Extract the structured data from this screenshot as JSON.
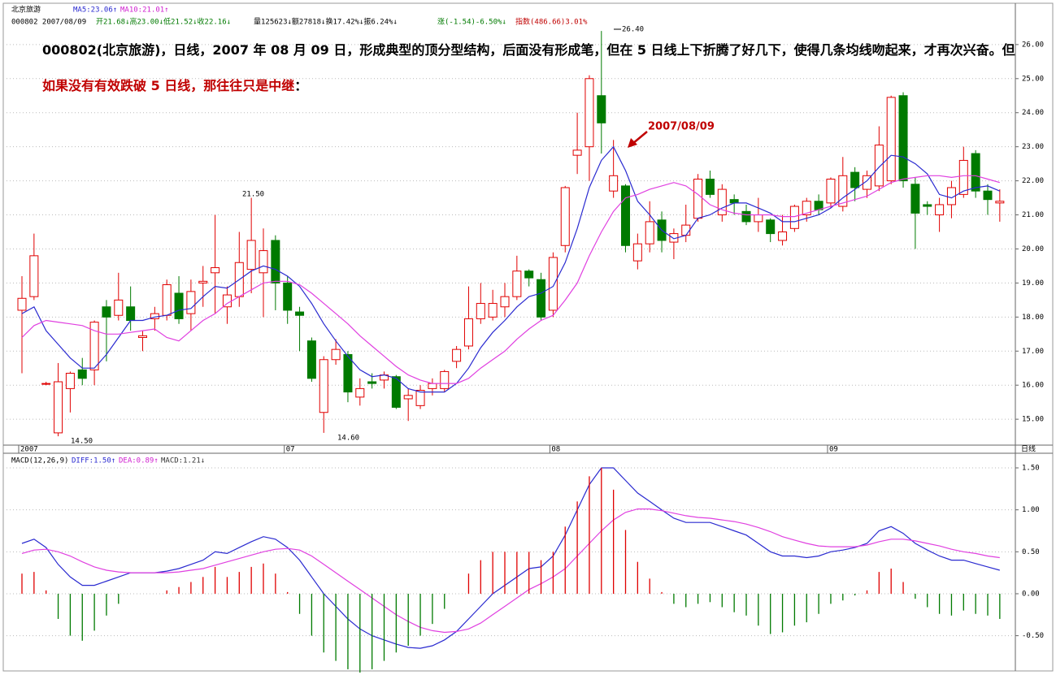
{
  "header": {
    "row1": [
      "北京旅游",
      "MA5:23.06↑",
      "MA10:21.01↑"
    ],
    "row2": [
      "000802 2007/08/09",
      "开21.68↓高23.00↓低21.52↓收22.16↓",
      "量125623↓额27818↓换17.42%↓振6.24%↓",
      "涨(-1.54)-6.50%↓",
      "指数(486.66)3.01%"
    ]
  },
  "note": [
    "000802(北京旅游)，日线，2007 年 08 月 09 日，形成典型的顶分型结构，后面没有形成笔，但在 5 日线上下折腾了好几下，使得几条均线吻起来，才再次兴奋。但",
    "如果没有有效跌破 5 日线，那往往只是中继",
    "："
  ],
  "chart_data": [
    {
      "type": "candlestick",
      "period_label": "日线",
      "categories": [
        "2007",
        null,
        null,
        null,
        null,
        null,
        null,
        null,
        null,
        null,
        null,
        null,
        null,
        null,
        null,
        null,
        null,
        null,
        null,
        null,
        null,
        null,
        "07",
        null,
        null,
        null,
        null,
        null,
        null,
        null,
        null,
        null,
        null,
        null,
        null,
        null,
        null,
        null,
        null,
        null,
        null,
        null,
        null,
        null,
        "08",
        null,
        null,
        null,
        null,
        null,
        null,
        null,
        null,
        null,
        null,
        null,
        null,
        null,
        null,
        null,
        null,
        null,
        null,
        null,
        null,
        null,
        null,
        "09",
        null,
        null,
        null,
        null,
        null,
        null,
        null,
        null,
        null,
        null,
        null,
        null,
        null,
        null
      ],
      "open": [
        18.2,
        18.6,
        16.05,
        14.6,
        15.9,
        16.45,
        16.45,
        18.3,
        18.05,
        18.3,
        17.4,
        17.95,
        18.05,
        18.7,
        18.1,
        19.0,
        19.3,
        18.3,
        18.6,
        19.4,
        19.3,
        20.25,
        19.0,
        18.15,
        17.3,
        15.2,
        16.75,
        16.9,
        15.65,
        16.1,
        16.15,
        16.25,
        15.6,
        15.4,
        15.9,
        15.9,
        16.7,
        17.15,
        17.95,
        18.0,
        18.3,
        18.6,
        19.35,
        19.1,
        18.2,
        20.1,
        22.75,
        23.0,
        24.5,
        21.7,
        21.85,
        19.65,
        20.15,
        20.85,
        20.2,
        20.4,
        20.9,
        22.05,
        21.0,
        21.45,
        21.1,
        20.8,
        20.85,
        20.25,
        20.6,
        21.0,
        21.4,
        21.35,
        21.25,
        22.25,
        21.75,
        21.85,
        22.0,
        24.5,
        21.9,
        21.3,
        21.0,
        21.3,
        21.6,
        22.8,
        21.7,
        21.35
      ],
      "high": [
        19.2,
        20.45,
        16.1,
        16.65,
        16.4,
        16.8,
        17.9,
        18.5,
        19.3,
        18.9,
        17.6,
        18.3,
        19.1,
        19.2,
        19.1,
        19.5,
        21.0,
        18.9,
        20.5,
        21.5,
        20.6,
        20.4,
        19.2,
        18.3,
        17.4,
        16.85,
        17.35,
        17.0,
        16.2,
        16.35,
        16.4,
        16.3,
        15.9,
        16.0,
        16.2,
        16.45,
        17.15,
        18.9,
        19.0,
        18.8,
        19.0,
        19.8,
        19.4,
        19.3,
        19.9,
        21.85,
        24.0,
        25.1,
        26.4,
        23.2,
        21.9,
        20.45,
        21.4,
        21.1,
        20.6,
        21.3,
        22.2,
        22.3,
        21.9,
        21.6,
        21.3,
        21.5,
        20.9,
        21.0,
        21.3,
        21.5,
        21.6,
        22.1,
        22.7,
        22.4,
        22.3,
        23.6,
        24.5,
        24.6,
        22.1,
        21.4,
        21.5,
        22.0,
        23.0,
        22.9,
        21.9,
        21.75
      ],
      "low": [
        16.35,
        18.5,
        16.0,
        14.5,
        15.2,
        16.0,
        16.0,
        16.7,
        17.9,
        17.6,
        17.0,
        17.6,
        17.9,
        17.8,
        17.6,
        18.3,
        18.1,
        17.8,
        18.3,
        18.7,
        18.0,
        18.2,
        17.8,
        17.0,
        16.1,
        14.6,
        16.6,
        15.5,
        15.4,
        15.9,
        15.9,
        15.3,
        14.95,
        15.3,
        15.7,
        15.8,
        16.5,
        17.05,
        17.8,
        17.9,
        18.0,
        18.5,
        18.9,
        17.9,
        18.0,
        19.9,
        22.2,
        22.0,
        22.8,
        21.5,
        19.9,
        19.4,
        19.9,
        19.9,
        19.7,
        20.2,
        20.8,
        21.5,
        20.8,
        21.0,
        20.7,
        20.5,
        20.2,
        20.1,
        20.5,
        20.8,
        21.0,
        21.2,
        21.1,
        21.4,
        21.5,
        21.7,
        21.9,
        21.8,
        20.0,
        21.0,
        20.5,
        20.9,
        21.5,
        21.5,
        21.0,
        20.8
      ],
      "close": [
        18.55,
        19.8,
        16.05,
        16.1,
        16.35,
        16.2,
        17.85,
        18.0,
        18.5,
        17.9,
        17.45,
        18.1,
        18.95,
        17.95,
        18.75,
        19.05,
        19.45,
        18.65,
        19.6,
        20.25,
        19.95,
        19.0,
        18.2,
        18.05,
        16.2,
        16.75,
        17.05,
        15.8,
        15.9,
        16.05,
        16.3,
        15.35,
        15.7,
        15.85,
        16.05,
        16.4,
        17.05,
        17.95,
        18.4,
        18.4,
        18.6,
        19.35,
        19.15,
        18.0,
        19.75,
        21.8,
        22.9,
        25.0,
        23.7,
        22.15,
        20.1,
        20.15,
        20.8,
        20.25,
        20.45,
        20.7,
        22.05,
        21.6,
        21.75,
        21.35,
        20.8,
        21.0,
        20.45,
        20.5,
        21.25,
        21.4,
        21.15,
        22.05,
        22.15,
        21.8,
        22.15,
        23.05,
        24.45,
        22.0,
        21.05,
        21.25,
        21.3,
        21.8,
        22.6,
        21.7,
        21.45,
        21.4
      ],
      "up_color": "#e00000",
      "down_color": "#007a00",
      "lines": [
        {
          "name": "MA5:23.06↑",
          "color": "#2a2ad0",
          "values": [
            18.1,
            18.3,
            17.6,
            17.2,
            16.8,
            16.5,
            16.5,
            16.9,
            17.4,
            17.9,
            17.9,
            18.0,
            18.05,
            18.2,
            18.25,
            18.6,
            18.9,
            18.85,
            19.1,
            19.35,
            19.5,
            19.4,
            19.2,
            18.9,
            18.4,
            17.8,
            17.3,
            16.85,
            16.45,
            16.25,
            16.3,
            16.2,
            15.9,
            15.8,
            15.8,
            15.8,
            16.05,
            16.5,
            17.1,
            17.55,
            17.9,
            18.3,
            18.6,
            18.7,
            18.9,
            19.6,
            20.6,
            21.8,
            22.6,
            23.0,
            22.3,
            21.4,
            21.0,
            20.55,
            20.3,
            20.4,
            20.9,
            21.0,
            21.2,
            21.35,
            21.35,
            21.2,
            21.05,
            20.8,
            20.8,
            20.9,
            21.0,
            21.2,
            21.5,
            21.75,
            22.0,
            22.4,
            22.75,
            22.7,
            22.5,
            22.2,
            21.6,
            21.5,
            21.7,
            21.8,
            21.85,
            21.7
          ]
        },
        {
          "name": "MA10:21.01↑",
          "color": "#e040e0",
          "values": [
            17.4,
            17.75,
            17.9,
            17.85,
            17.8,
            17.75,
            17.6,
            17.5,
            17.5,
            17.55,
            17.6,
            17.65,
            17.4,
            17.3,
            17.6,
            17.9,
            18.1,
            18.4,
            18.6,
            18.8,
            19.0,
            19.05,
            19.05,
            18.95,
            18.7,
            18.4,
            18.1,
            17.8,
            17.45,
            17.15,
            16.85,
            16.55,
            16.3,
            16.15,
            16.05,
            16.05,
            16.05,
            16.2,
            16.5,
            16.75,
            17.0,
            17.35,
            17.65,
            17.9,
            18.05,
            18.5,
            19.0,
            19.8,
            20.5,
            21.1,
            21.5,
            21.6,
            21.75,
            21.85,
            21.95,
            21.85,
            21.6,
            21.3,
            21.15,
            21.05,
            21.0,
            21.0,
            21.0,
            20.95,
            20.95,
            21.05,
            21.15,
            21.25,
            21.35,
            21.45,
            21.55,
            21.75,
            21.95,
            22.05,
            22.1,
            22.15,
            22.15,
            22.1,
            22.15,
            22.15,
            22.05,
            21.95
          ]
        }
      ],
      "annotations": [
        "26.40",
        "21.50",
        "14.50",
        "14.60",
        "2007/08/09"
      ],
      "ylim": [
        14.24,
        27.07
      ],
      "yticks": [
        {
          "value": 15,
          "label": "15.00"
        },
        {
          "value": 16,
          "label": "16.00"
        },
        {
          "value": 17,
          "label": "17.00"
        },
        {
          "value": 18,
          "label": "18.00"
        },
        {
          "value": 19,
          "label": "19.00"
        },
        {
          "value": 20,
          "label": "20.00"
        },
        {
          "value": 21,
          "label": "21.00"
        },
        {
          "value": 22,
          "label": "22.00"
        },
        {
          "value": 23,
          "label": "23.00"
        },
        {
          "value": 24,
          "label": "24.00"
        },
        {
          "value": 25,
          "label": "25.00"
        },
        {
          "value": 26,
          "label": "26.00"
        }
      ],
      "grid": true
    },
    {
      "type": "macd",
      "title": "MACD(12,26,9)",
      "series": [
        {
          "name": "DIFF:1.50↑",
          "color": "#2a2ad0",
          "values": [
            0.6,
            0.65,
            0.55,
            0.35,
            0.2,
            0.1,
            0.1,
            0.15,
            0.2,
            0.25,
            0.25,
            0.25,
            0.27,
            0.3,
            0.35,
            0.4,
            0.5,
            0.48,
            0.55,
            0.62,
            0.68,
            0.65,
            0.55,
            0.4,
            0.2,
            0.0,
            -0.15,
            -0.3,
            -0.42,
            -0.5,
            -0.55,
            -0.6,
            -0.64,
            -0.65,
            -0.62,
            -0.55,
            -0.45,
            -0.3,
            -0.15,
            0.0,
            0.1,
            0.2,
            0.3,
            0.32,
            0.45,
            0.7,
            1.0,
            1.3,
            1.5,
            1.5,
            1.35,
            1.2,
            1.1,
            1.0,
            0.9,
            0.85,
            0.85,
            0.85,
            0.8,
            0.75,
            0.7,
            0.6,
            0.5,
            0.45,
            0.45,
            0.43,
            0.45,
            0.5,
            0.52,
            0.55,
            0.6,
            0.75,
            0.8,
            0.72,
            0.6,
            0.52,
            0.45,
            0.4,
            0.4,
            0.36,
            0.32,
            0.28
          ]
        },
        {
          "name": "DEA:0.89↑",
          "color": "#e040e0",
          "values": [
            0.48,
            0.52,
            0.53,
            0.5,
            0.45,
            0.38,
            0.32,
            0.28,
            0.26,
            0.25,
            0.25,
            0.25,
            0.25,
            0.26,
            0.28,
            0.3,
            0.34,
            0.38,
            0.42,
            0.46,
            0.5,
            0.53,
            0.54,
            0.52,
            0.45,
            0.35,
            0.25,
            0.15,
            0.05,
            -0.05,
            -0.15,
            -0.25,
            -0.33,
            -0.4,
            -0.44,
            -0.46,
            -0.45,
            -0.42,
            -0.35,
            -0.25,
            -0.15,
            -0.05,
            0.05,
            0.12,
            0.2,
            0.3,
            0.45,
            0.6,
            0.75,
            0.88,
            0.97,
            1.01,
            1.01,
            0.99,
            0.96,
            0.93,
            0.91,
            0.9,
            0.88,
            0.86,
            0.83,
            0.79,
            0.74,
            0.68,
            0.64,
            0.6,
            0.57,
            0.56,
            0.56,
            0.56,
            0.58,
            0.62,
            0.65,
            0.65,
            0.63,
            0.6,
            0.57,
            0.53,
            0.5,
            0.48,
            0.45,
            0.43
          ]
        },
        {
          "name": "MACD:1.21↓",
          "color": "#333333",
          "bars": true,
          "values": [
            0.24,
            0.26,
            0.04,
            -0.3,
            -0.5,
            -0.56,
            -0.44,
            -0.26,
            -0.12,
            0,
            0,
            0,
            0.04,
            0.08,
            0.14,
            0.2,
            0.32,
            0.2,
            0.26,
            0.32,
            0.36,
            0.24,
            0.02,
            -0.24,
            -0.5,
            -0.7,
            -0.8,
            -0.9,
            -0.94,
            -0.9,
            -0.8,
            -0.7,
            -0.62,
            -0.5,
            -0.36,
            -0.18,
            0,
            0.24,
            0.4,
            0.5,
            0.5,
            0.5,
            0.5,
            0.4,
            0.5,
            0.8,
            1.1,
            1.4,
            1.5,
            1.24,
            0.76,
            0.38,
            0.18,
            0.02,
            -0.12,
            -0.16,
            -0.12,
            -0.1,
            -0.16,
            -0.22,
            -0.26,
            -0.38,
            -0.48,
            -0.46,
            -0.38,
            -0.34,
            -0.24,
            -0.12,
            -0.08,
            -0.02,
            0.04,
            0.26,
            0.3,
            0.14,
            -0.06,
            -0.16,
            -0.24,
            -0.26,
            -0.2,
            -0.24,
            -0.26,
            -0.3
          ]
        }
      ],
      "up_color": "#e00000",
      "down_color": "#007a00",
      "ylim": [
        -0.92,
        1.655
      ],
      "yticks": [
        {
          "value": -0.5,
          "label": "-0.50"
        },
        {
          "value": 0,
          "label": "0.00"
        },
        {
          "value": 0.5,
          "label": "0.50"
        },
        {
          "value": 1,
          "label": "1.00"
        },
        {
          "value": 1.5,
          "label": "1.50"
        }
      ],
      "grid": true
    }
  ]
}
